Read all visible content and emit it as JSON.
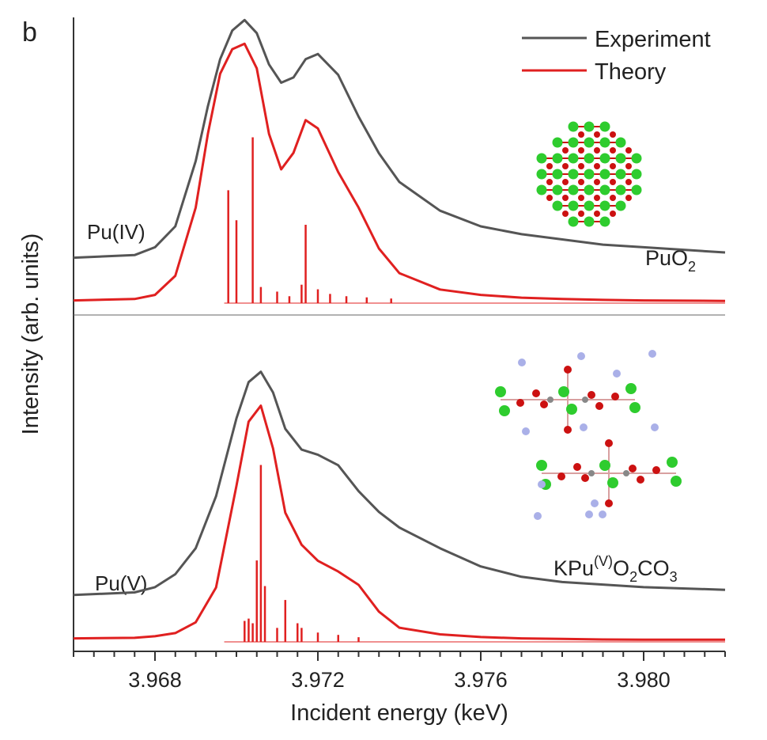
{
  "panel_label": "b",
  "chart_data": {
    "type": "line",
    "title": "",
    "xlabel": "Incident energy (keV)",
    "ylabel": "Intensity (arb. units)",
    "xlim": [
      3.966,
      3.982
    ],
    "ylim": [
      0,
      1
    ],
    "grid": false,
    "x_ticks": [
      3.968,
      3.972,
      3.976,
      3.98
    ],
    "x_tick_labels": [
      "3.968",
      "3.972",
      "3.976",
      "3.980"
    ],
    "legend": {
      "placement": "top-right",
      "entries": [
        {
          "label": "Experiment",
          "color": "#555555"
        },
        {
          "label": "Theory",
          "color": "#e02020"
        }
      ]
    },
    "colors": {
      "experiment": "#555555",
      "theory": "#e02020",
      "oxygen": "#cc1111",
      "plutonium": "#2ecc2e",
      "potassium": "#aab0e8",
      "carbon": "#888888"
    },
    "panels": [
      {
        "id": "pu-iv",
        "oxidation_label": "Pu(IV)",
        "compound": {
          "main": "PuO",
          "sub": "2",
          "sup": "",
          "rest": ""
        },
        "series": [
          {
            "name": "Experiment",
            "x": [
              3.966,
              3.9675,
              3.968,
              3.9685,
              3.969,
              3.9693,
              3.9696,
              3.9699,
              3.9702,
              3.9705,
              3.9708,
              3.9711,
              3.9714,
              3.9717,
              3.972,
              3.9725,
              3.973,
              3.9735,
              3.974,
              3.975,
              3.976,
              3.977,
              3.978,
              3.979,
              3.98,
              3.982
            ],
            "y": [
              0.08,
              0.09,
              0.12,
              0.2,
              0.45,
              0.66,
              0.84,
              0.95,
              0.99,
              0.94,
              0.82,
              0.75,
              0.77,
              0.84,
              0.86,
              0.78,
              0.62,
              0.48,
              0.37,
              0.26,
              0.2,
              0.17,
              0.15,
              0.13,
              0.12,
              0.1
            ]
          },
          {
            "name": "Theory",
            "x": [
              3.966,
              3.9675,
              3.968,
              3.9685,
              3.969,
              3.9693,
              3.9696,
              3.9699,
              3.9702,
              3.9705,
              3.9708,
              3.9711,
              3.9714,
              3.9717,
              3.972,
              3.9725,
              3.973,
              3.9735,
              3.974,
              3.975,
              3.976,
              3.977,
              3.978,
              3.979,
              3.98,
              3.982
            ],
            "y": [
              0.01,
              0.015,
              0.03,
              0.1,
              0.35,
              0.62,
              0.84,
              0.93,
              0.95,
              0.86,
              0.62,
              0.49,
              0.55,
              0.67,
              0.64,
              0.48,
              0.35,
              0.2,
              0.11,
              0.05,
              0.03,
              0.02,
              0.015,
              0.012,
              0.01,
              0.008
            ]
          }
        ],
        "sticks": {
          "x": [
            3.9698,
            3.97,
            3.9704,
            3.9706,
            3.971,
            3.9713,
            3.9716,
            3.9717,
            3.972,
            3.9723,
            3.9727,
            3.9732,
            3.9738
          ],
          "h": [
            0.49,
            0.36,
            0.72,
            0.07,
            0.05,
            0.03,
            0.08,
            0.34,
            0.06,
            0.04,
            0.03,
            0.025,
            0.02
          ]
        }
      },
      {
        "id": "pu-v",
        "oxidation_label": "Pu(V)",
        "compound": {
          "main": "KPu",
          "sub": "",
          "sup": "(V)",
          "rest_parts": [
            {
              "t": "O",
              "s": "2"
            },
            {
              "t": "CO",
              "s": "3"
            }
          ]
        },
        "series": [
          {
            "name": "Experiment",
            "x": [
              3.966,
              3.9675,
              3.968,
              3.9685,
              3.969,
              3.9695,
              3.97,
              3.9703,
              3.9706,
              3.9709,
              3.9712,
              3.9716,
              3.972,
              3.9725,
              3.973,
              3.9735,
              3.974,
              3.975,
              3.976,
              3.977,
              3.978,
              3.979,
              3.98,
              3.982
            ],
            "y": [
              0.08,
              0.09,
              0.11,
              0.16,
              0.26,
              0.46,
              0.76,
              0.9,
              0.94,
              0.86,
              0.72,
              0.64,
              0.62,
              0.58,
              0.48,
              0.4,
              0.34,
              0.26,
              0.19,
              0.15,
              0.13,
              0.12,
              0.11,
              0.1
            ]
          },
          {
            "name": "Theory",
            "x": [
              3.966,
              3.9675,
              3.968,
              3.9685,
              3.969,
              3.9695,
              3.97,
              3.9703,
              3.9706,
              3.9709,
              3.9712,
              3.9716,
              3.972,
              3.9725,
              3.973,
              3.9735,
              3.974,
              3.975,
              3.976,
              3.977,
              3.978,
              3.979,
              3.98,
              3.982
            ],
            "y": [
              0.01,
              0.012,
              0.018,
              0.03,
              0.07,
              0.2,
              0.58,
              0.82,
              0.88,
              0.72,
              0.48,
              0.36,
              0.3,
              0.26,
              0.21,
              0.11,
              0.05,
              0.025,
              0.015,
              0.01,
              0.008,
              0.006,
              0.005,
              0.005
            ]
          }
        ],
        "sticks": {
          "x": [
            3.9702,
            3.9703,
            3.9704,
            3.9705,
            3.9706,
            3.9707,
            3.971,
            3.9712,
            3.9715,
            3.9716,
            3.972,
            3.9725,
            3.973
          ],
          "h": [
            0.09,
            0.1,
            0.08,
            0.35,
            0.76,
            0.24,
            0.06,
            0.18,
            0.08,
            0.06,
            0.04,
            0.03,
            0.02
          ]
        }
      }
    ]
  }
}
